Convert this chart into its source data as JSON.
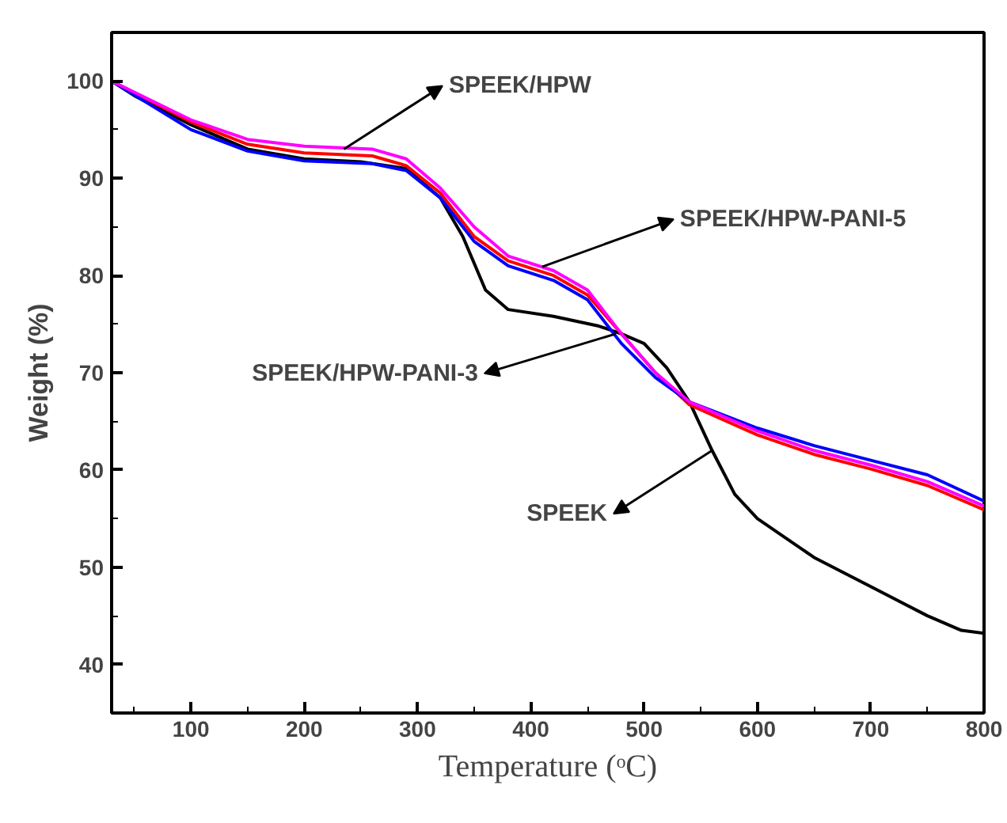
{
  "chart_data": {
    "type": "line",
    "xlabel": "Temperature (ᵒC)",
    "ylabel": "Weight (%)",
    "xlim": [
      30,
      800
    ],
    "ylim": [
      35,
      105
    ],
    "xticks": [
      100,
      200,
      300,
      400,
      500,
      600,
      700,
      800
    ],
    "yticks": [
      40,
      50,
      60,
      70,
      80,
      90,
      100
    ],
    "line_style": "solid",
    "marker": "none",
    "series": [
      {
        "color": "#000000",
        "x": [
          30,
          50,
          100,
          150,
          200,
          250,
          290,
          320,
          340,
          360,
          380,
          420,
          460,
          480,
          500,
          520,
          540,
          560,
          580,
          600,
          650,
          700,
          750,
          780,
          800
        ],
        "values": [
          100,
          98.5,
          95.5,
          93,
          92,
          91.7,
          91,
          88,
          84,
          78.5,
          76.5,
          75.8,
          74.8,
          74,
          73,
          70.5,
          67,
          62,
          57.5,
          55,
          51,
          48,
          45,
          43.5,
          43.2
        ]
      },
      {
        "color": "#ff0000",
        "x": [
          30,
          100,
          150,
          200,
          260,
          290,
          320,
          350,
          380,
          420,
          450,
          480,
          510,
          540,
          600,
          650,
          700,
          750,
          800
        ],
        "values": [
          100,
          95.8,
          93.5,
          92.6,
          92.3,
          91.3,
          88.5,
          84,
          81.5,
          80,
          78,
          74,
          70,
          66.7,
          63.6,
          61.6,
          60.1,
          58.4,
          55.9
        ]
      },
      {
        "color": "#0000ff",
        "x": [
          30,
          100,
          150,
          200,
          260,
          290,
          320,
          350,
          380,
          420,
          450,
          480,
          510,
          540,
          600,
          650,
          700,
          750,
          800
        ],
        "values": [
          100,
          95,
          92.8,
          91.8,
          91.5,
          90.8,
          88,
          83.5,
          81,
          79.5,
          77.5,
          73,
          69.5,
          67,
          64.3,
          62.5,
          61,
          59.5,
          56.8
        ]
      },
      {
        "color": "#ff00ff",
        "x": [
          30,
          100,
          150,
          200,
          260,
          290,
          320,
          350,
          380,
          420,
          450,
          480,
          510,
          540,
          600,
          650,
          700,
          750,
          800
        ],
        "values": [
          100,
          96,
          94,
          93.3,
          93,
          92,
          89,
          85,
          82,
          80.5,
          78.5,
          74,
          70,
          67,
          64,
          62,
          60.5,
          58.8,
          56.3
        ]
      }
    ],
    "annotations": [
      {
        "text": "SPEEK/HPW",
        "x": 235,
        "y": 93
      },
      {
        "text": "SPEEK/HPW-PANI-5",
        "x": 410,
        "y": 80.9
      },
      {
        "text": "SPEEK/HPW-PANI-3",
        "x": 475,
        "y": 74
      },
      {
        "text": "SPEEK",
        "x": 560,
        "y": 62
      }
    ]
  }
}
